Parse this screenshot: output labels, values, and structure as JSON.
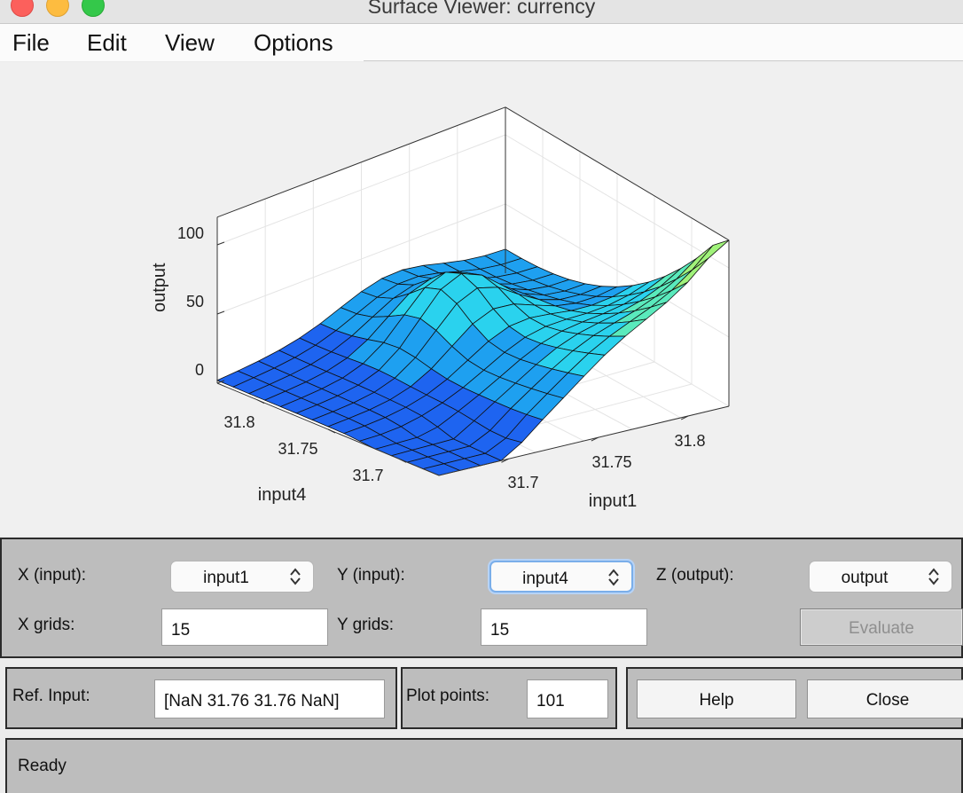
{
  "window": {
    "title": "Surface Viewer: currency"
  },
  "menu": [
    {
      "label": "File"
    },
    {
      "label": "Edit"
    },
    {
      "label": "View"
    },
    {
      "label": "Options"
    }
  ],
  "chart_data": {
    "type": "surface",
    "zlabel": "output",
    "xlabel": "input1",
    "ylabel": "input4",
    "z_ticks": [
      "0",
      "50",
      "100"
    ],
    "x_ticks": [
      "31.7",
      "31.75",
      "31.8"
    ],
    "y_ticks": [
      "31.8",
      "31.75",
      "31.7"
    ],
    "zlim": [
      0,
      120
    ],
    "grid": true,
    "colormap": [
      "#1e64f0",
      "#1ea0f0",
      "#2ad2ee",
      "#5aeabc",
      "#a0f27a",
      "#d6f53a"
    ]
  },
  "controls": {
    "x_input_label": "X (input):",
    "x_input_value": "input1",
    "y_input_label": "Y (input):",
    "y_input_value": "input4",
    "z_output_label": "Z (output):",
    "z_output_value": "output",
    "x_grids_label": "X grids:",
    "x_grids_value": "15",
    "y_grids_label": "Y grids:",
    "y_grids_value": "15",
    "evaluate_label": "Evaluate",
    "ref_input_label": "Ref. Input:",
    "ref_input_value": "[NaN 31.76 31.76 NaN]",
    "plot_points_label": "Plot points:",
    "plot_points_value": "101",
    "help_label": "Help",
    "close_label": "Close"
  },
  "status": {
    "text": "Ready"
  }
}
